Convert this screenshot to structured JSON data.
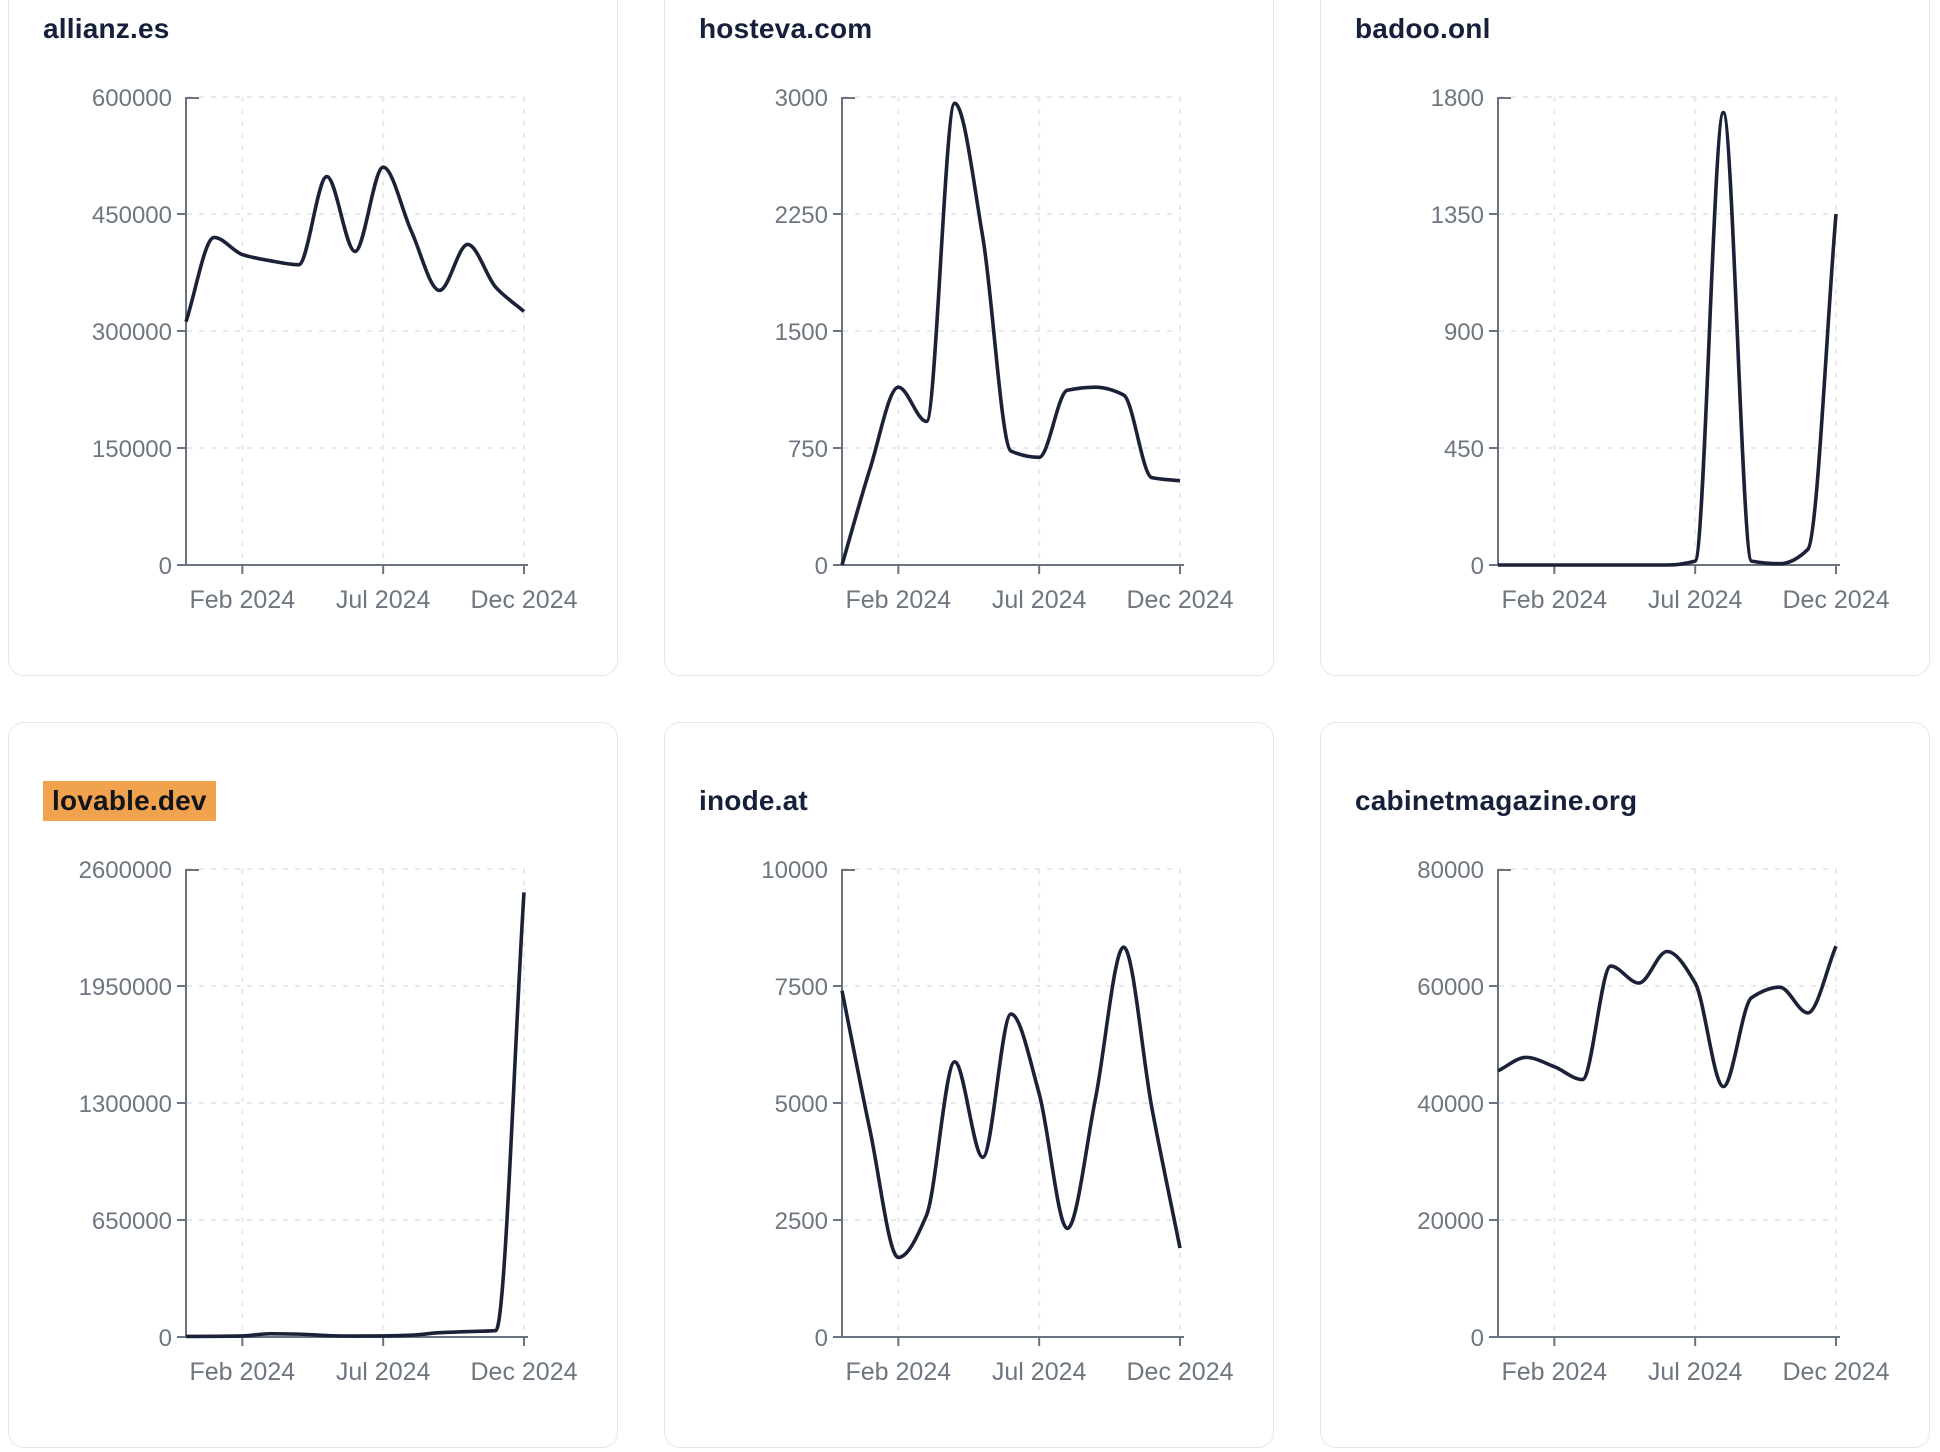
{
  "theme": {
    "page_bg": "#ffffff",
    "card_bg": "#ffffff",
    "card_border": "#e5e7f0",
    "title_color": "#16203a",
    "line_color": "#1b2138",
    "axis_color": "#6b7280",
    "tick_label_color": "#6e7680",
    "grid_color": "#e8e9ee",
    "highlight_bg": "#f1a24e",
    "highlight_text": "#10151c"
  },
  "x_months": [
    "2023-12",
    "2024-01",
    "2024-02",
    "2024-03",
    "2024-04",
    "2024-05",
    "2024-06",
    "2024-07",
    "2024-08",
    "2024-09",
    "2024-10",
    "2024-11",
    "2024-12"
  ],
  "chart_data": [
    {
      "type": "line",
      "title": "allianz.es",
      "highlighted": false,
      "values": [
        312000,
        420000,
        398000,
        390000,
        385000,
        498000,
        402000,
        510000,
        428000,
        352000,
        411000,
        356000,
        325000
      ],
      "ylim": [
        0,
        600000
      ],
      "y_ticks": [
        0,
        150000,
        300000,
        450000,
        600000
      ],
      "x_ticks": [
        {
          "label": "Feb 2024",
          "i": 2
        },
        {
          "label": "Jul 2024",
          "i": 7
        },
        {
          "label": "Dec 2024",
          "i": 12
        }
      ],
      "grid": "dashed",
      "legend": "none",
      "xlabel": "",
      "ylabel": ""
    },
    {
      "type": "line",
      "title": "hosteva.com",
      "highlighted": false,
      "values": [
        0,
        620,
        1140,
        920,
        2960,
        2100,
        730,
        690,
        1120,
        1140,
        1090,
        560,
        540
      ],
      "ylim": [
        0,
        3000
      ],
      "y_ticks": [
        0,
        750,
        1500,
        2250,
        3000
      ],
      "x_ticks": [
        {
          "label": "Feb 2024",
          "i": 2
        },
        {
          "label": "Jul 2024",
          "i": 7
        },
        {
          "label": "Dec 2024",
          "i": 12
        }
      ],
      "grid": "dashed",
      "legend": "none",
      "xlabel": "",
      "ylabel": ""
    },
    {
      "type": "line",
      "title": "badoo.onl",
      "highlighted": false,
      "values": [
        0,
        0,
        0,
        0,
        0,
        0,
        0,
        15,
        1740,
        15,
        5,
        60,
        1350
      ],
      "ylim": [
        0,
        1800
      ],
      "y_ticks": [
        0,
        450,
        900,
        1350,
        1800
      ],
      "x_ticks": [
        {
          "label": "Feb 2024",
          "i": 2
        },
        {
          "label": "Jul 2024",
          "i": 7
        },
        {
          "label": "Dec 2024",
          "i": 12
        }
      ],
      "grid": "dashed",
      "legend": "none",
      "xlabel": "",
      "ylabel": ""
    },
    {
      "type": "line",
      "title": "lovable.dev",
      "highlighted": true,
      "values": [
        3000,
        4000,
        6000,
        18000,
        16000,
        8000,
        5000,
        6000,
        10000,
        24000,
        30000,
        36000,
        2470000
      ],
      "ylim": [
        0,
        2600000
      ],
      "y_ticks": [
        0,
        650000,
        1300000,
        1950000,
        2600000
      ],
      "x_ticks": [
        {
          "label": "Feb 2024",
          "i": 2
        },
        {
          "label": "Jul 2024",
          "i": 7
        },
        {
          "label": "Dec 2024",
          "i": 12
        }
      ],
      "grid": "dashed",
      "legend": "none",
      "xlabel": "",
      "ylabel": ""
    },
    {
      "type": "line",
      "title": "inode.at",
      "highlighted": false,
      "values": [
        7400,
        4400,
        1700,
        2600,
        5880,
        3840,
        6900,
        5200,
        2320,
        5100,
        8330,
        4900,
        1900
      ],
      "ylim": [
        0,
        10000
      ],
      "y_ticks": [
        0,
        2500,
        5000,
        7500,
        10000
      ],
      "x_ticks": [
        {
          "label": "Feb 2024",
          "i": 2
        },
        {
          "label": "Jul 2024",
          "i": 7
        },
        {
          "label": "Dec 2024",
          "i": 12
        }
      ],
      "grid": "dashed",
      "legend": "none",
      "xlabel": "",
      "ylabel": ""
    },
    {
      "type": "line",
      "title": "cabinetmagazine.org",
      "highlighted": false,
      "values": [
        45500,
        47800,
        46200,
        44000,
        63400,
        60500,
        65900,
        60500,
        42800,
        58000,
        59800,
        55400,
        66800
      ],
      "ylim": [
        0,
        80000
      ],
      "y_ticks": [
        0,
        20000,
        40000,
        60000,
        80000
      ],
      "x_ticks": [
        {
          "label": "Feb 2024",
          "i": 2
        },
        {
          "label": "Jul 2024",
          "i": 7
        },
        {
          "label": "Dec 2024",
          "i": 12
        }
      ],
      "grid": "dashed",
      "legend": "none",
      "xlabel": "",
      "ylabel": ""
    }
  ]
}
